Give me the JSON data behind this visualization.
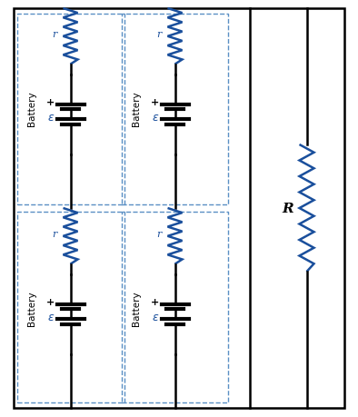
{
  "wire_color": "#000000",
  "resistor_color": "#1a4f9c",
  "dashed_color": "#5a8fc4",
  "battery_color": "#000000",
  "wire_lw": 1.8,
  "resistor_lw": 1.8,
  "dashed_lw": 1.0,
  "battery_lw": 1.8,
  "fig_width": 3.94,
  "fig_height": 4.6,
  "dpi": 100,
  "bg_color": "#ffffff",
  "xlim": [
    0,
    7.88
  ],
  "ylim": [
    0,
    9.2
  ]
}
